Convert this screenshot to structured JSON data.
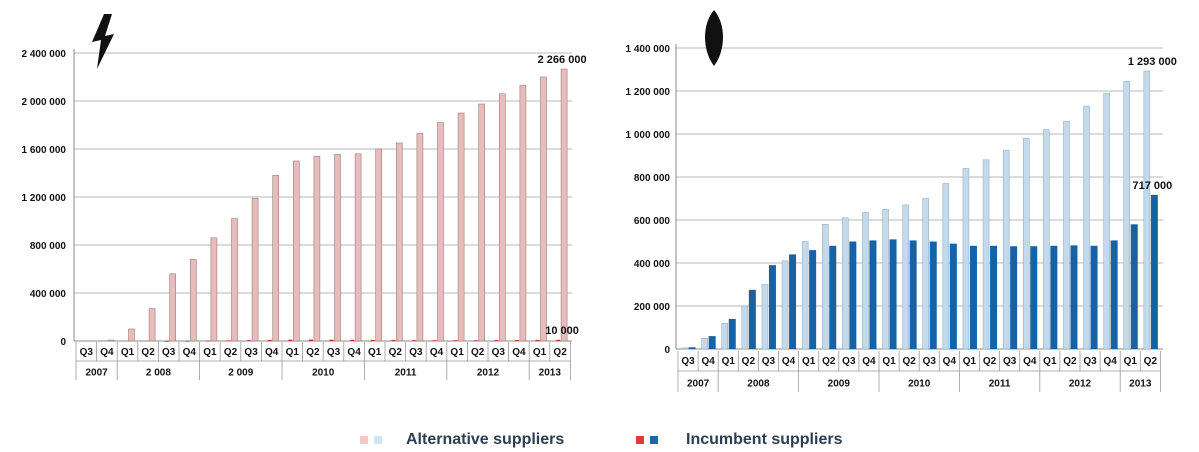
{
  "chart_data": [
    {
      "type": "bar",
      "icon": "lightning-bolt-icon",
      "quarters": [
        "Q3",
        "Q4",
        "Q1",
        "Q2",
        "Q3",
        "Q4",
        "Q1",
        "Q2",
        "Q3",
        "Q4",
        "Q1",
        "Q2",
        "Q3",
        "Q4",
        "Q1",
        "Q2",
        "Q3",
        "Q4",
        "Q1",
        "Q2",
        "Q3",
        "Q4",
        "Q1",
        "Q2"
      ],
      "years": [
        {
          "label": "2007",
          "span": 2
        },
        {
          "label": "2 008",
          "span": 4
        },
        {
          "label": "2 009",
          "span": 4
        },
        {
          "label": "2010",
          "span": 4
        },
        {
          "label": "2011",
          "span": 4
        },
        {
          "label": "2012",
          "span": 4
        },
        {
          "label": "2013",
          "span": 2
        }
      ],
      "ylim": [
        0,
        2400000
      ],
      "yticks": [
        0,
        400000,
        800000,
        1200000,
        1600000,
        2000000,
        2400000
      ],
      "ytick_labels": [
        "0",
        "400 000",
        "800 000",
        "1 200 000",
        "1 600 000",
        "2 000 000",
        "2 400 000"
      ],
      "grid": true,
      "series": [
        {
          "name": "Alternative suppliers",
          "color": "#e6bcbc",
          "values": [
            0,
            8000,
            100000,
            270000,
            560000,
            680000,
            860000,
            1020000,
            1190000,
            1380000,
            1500000,
            1540000,
            1555000,
            1560000,
            1600000,
            1650000,
            1730000,
            1820000,
            1900000,
            1975000,
            2060000,
            2130000,
            2200000,
            2266000
          ]
        },
        {
          "name": "Incumbent suppliers",
          "color": "#cc2a2a",
          "values": [
            0,
            0,
            0,
            0,
            500,
            1500,
            3000,
            5000,
            7000,
            9000,
            11000,
            12000,
            11000,
            10000,
            9000,
            8000,
            7000,
            6000,
            6000,
            6000,
            7000,
            8000,
            9000,
            10000
          ]
        }
      ],
      "annotations": [
        {
          "text": "2 266 000",
          "series": 0,
          "index": 23
        },
        {
          "text": "10 000",
          "series": 1,
          "index": 23
        }
      ]
    },
    {
      "type": "bar",
      "icon": "gas-flame-icon",
      "quarters": [
        "Q3",
        "Q4",
        "Q1",
        "Q2",
        "Q3",
        "Q4",
        "Q1",
        "Q2",
        "Q3",
        "Q4",
        "Q1",
        "Q2",
        "Q3",
        "Q4",
        "Q1",
        "Q2",
        "Q3",
        "Q4",
        "Q1",
        "Q2",
        "Q3",
        "Q4",
        "Q1",
        "Q2"
      ],
      "years": [
        {
          "label": "2007",
          "span": 2
        },
        {
          "label": "2008",
          "span": 4
        },
        {
          "label": "2009",
          "span": 4
        },
        {
          "label": "2010",
          "span": 4
        },
        {
          "label": "2011",
          "span": 4
        },
        {
          "label": "2012",
          "span": 4
        },
        {
          "label": "2013",
          "span": 2
        }
      ],
      "ylim": [
        0,
        1400000
      ],
      "yticks": [
        0,
        200000,
        400000,
        600000,
        800000,
        1000000,
        1200000,
        1400000
      ],
      "ytick_labels": [
        "0",
        "200 000",
        "400 000",
        "600 000",
        "800 000",
        "1 000 000",
        "1 200 000",
        "1 400 000"
      ],
      "grid": true,
      "series": [
        {
          "name": "Alternative suppliers",
          "color": "#c4d9ea",
          "values": [
            5000,
            50000,
            120000,
            200000,
            300000,
            410000,
            500000,
            580000,
            610000,
            635000,
            650000,
            670000,
            700000,
            770000,
            840000,
            880000,
            925000,
            980000,
            1020000,
            1060000,
            1130000,
            1190000,
            1245000,
            1293000
          ]
        },
        {
          "name": "Incumbent suppliers",
          "color": "#1762a4",
          "values": [
            8000,
            60000,
            140000,
            275000,
            390000,
            440000,
            460000,
            480000,
            500000,
            505000,
            510000,
            505000,
            500000,
            490000,
            480000,
            480000,
            478000,
            478000,
            480000,
            482000,
            480000,
            505000,
            580000,
            717000
          ]
        }
      ],
      "annotations": [
        {
          "text": "1 293 000",
          "series": 0,
          "index": 23
        },
        {
          "text": "717 000",
          "series": 1,
          "index": 23
        }
      ]
    }
  ],
  "legend": {
    "alternative": {
      "label": "Alternative suppliers",
      "colors": [
        "#f2c7c7",
        "#cfe6f6"
      ]
    },
    "incumbent": {
      "label": "Incumbent suppliers",
      "colors": [
        "#e03a3a",
        "#1a66b0"
      ]
    }
  }
}
